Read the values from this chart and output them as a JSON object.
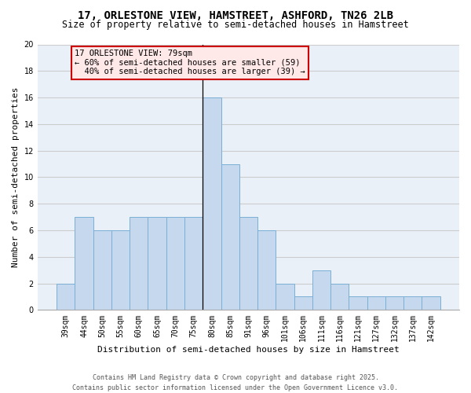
{
  "title": "17, ORLESTONE VIEW, HAMSTREET, ASHFORD, TN26 2LB",
  "subtitle": "Size of property relative to semi-detached houses in Hamstreet",
  "xlabel": "Distribution of semi-detached houses by size in Hamstreet",
  "ylabel": "Number of semi-detached properties",
  "categories": [
    "39sqm",
    "44sqm",
    "50sqm",
    "55sqm",
    "60sqm",
    "65sqm",
    "70sqm",
    "75sqm",
    "80sqm",
    "85sqm",
    "91sqm",
    "96sqm",
    "101sqm",
    "106sqm",
    "111sqm",
    "116sqm",
    "121sqm",
    "127sqm",
    "132sqm",
    "137sqm",
    "142sqm"
  ],
  "values": [
    2,
    7,
    6,
    6,
    7,
    7,
    7,
    7,
    16,
    11,
    7,
    6,
    2,
    1,
    3,
    2,
    1,
    1,
    1,
    1,
    1
  ],
  "bar_color": "#c5d8ed",
  "bar_edge_color": "#7aafd4",
  "property_label": "17 ORLESTONE VIEW: 79sqm",
  "smaller_pct": 60,
  "smaller_count": 59,
  "larger_pct": 40,
  "larger_count": 39,
  "ylim": [
    0,
    20
  ],
  "yticks": [
    0,
    2,
    4,
    6,
    8,
    10,
    12,
    14,
    16,
    18,
    20
  ],
  "grid_color": "#cccccc",
  "background_color": "#eaf0f8",
  "footer": "Contains HM Land Registry data © Crown copyright and database right 2025.\nContains public sector information licensed under the Open Government Licence v3.0.",
  "title_fontsize": 10,
  "subtitle_fontsize": 8.5,
  "axis_label_fontsize": 8,
  "tick_fontsize": 7,
  "footer_fontsize": 6,
  "annot_fontsize": 7.5
}
